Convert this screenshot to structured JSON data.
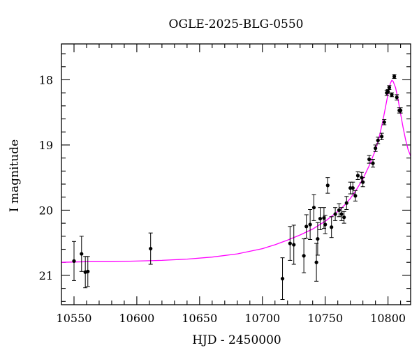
{
  "chart_data": {
    "type": "scatter",
    "title": "OGLE-2025-BLG-0550",
    "xlabel": "HJD - 2450000",
    "ylabel": "I magnitude",
    "xlim": [
      10540,
      10818
    ],
    "ylim": [
      21.45,
      17.45
    ],
    "y_inverted": true,
    "grid": false,
    "x_ticks": [
      10550,
      10600,
      10650,
      10700,
      10750,
      10800
    ],
    "y_ticks": [
      18,
      19,
      20,
      21
    ],
    "x_tick_labels": [
      "10550",
      "10600",
      "10650",
      "10700",
      "10750",
      "10800"
    ],
    "y_tick_labels": [
      "18",
      "19",
      "20",
      "21"
    ],
    "x_minor_step": 10,
    "y_minor_step": 0.2,
    "colors": {
      "points": "#000000",
      "model": "#ff00ff",
      "frame": "#000000"
    },
    "series": [
      {
        "kind": "points",
        "x": [
          10550,
          10556,
          10559,
          10561,
          10611,
          10716,
          10722,
          10725,
          10733,
          10735,
          10738,
          10741,
          10743,
          10744,
          10746,
          10749,
          10750,
          10752,
          10755,
          10758,
          10761,
          10763,
          10765,
          10767,
          10770,
          10772,
          10774,
          10776,
          10779,
          10780,
          10785,
          10788,
          10790,
          10792,
          10795,
          10797,
          10799,
          10800,
          10801,
          10803,
          10805,
          10807,
          10809,
          10810
        ],
        "y": [
          20.78,
          20.67,
          20.95,
          20.94,
          20.59,
          21.05,
          20.51,
          20.53,
          20.7,
          20.25,
          20.22,
          19.96,
          20.8,
          20.44,
          20.13,
          20.12,
          20.22,
          19.62,
          20.26,
          20.06,
          20.0,
          20.06,
          20.11,
          19.89,
          19.66,
          19.66,
          19.78,
          19.47,
          19.5,
          19.57,
          19.22,
          19.28,
          19.05,
          18.93,
          18.87,
          18.65,
          18.2,
          18.18,
          18.12,
          18.23,
          17.95,
          18.27,
          18.47,
          18.47
        ],
        "yerr": [
          0.3,
          0.27,
          0.24,
          0.23,
          0.24,
          0.32,
          0.26,
          0.3,
          0.26,
          0.18,
          0.23,
          0.2,
          0.29,
          0.25,
          0.17,
          0.16,
          0.14,
          0.12,
          0.16,
          0.1,
          0.1,
          0.1,
          0.09,
          0.1,
          0.09,
          0.09,
          0.08,
          0.06,
          0.08,
          0.07,
          0.06,
          0.06,
          0.05,
          0.05,
          0.05,
          0.04,
          0.04,
          0.03,
          0.03,
          0.03,
          0.03,
          0.04,
          0.04,
          0.04
        ]
      },
      {
        "kind": "model",
        "x": [
          10540,
          10560,
          10580,
          10600,
          10620,
          10640,
          10660,
          10680,
          10700,
          10710,
          10720,
          10730,
          10740,
          10750,
          10760,
          10765,
          10770,
          10775,
          10780,
          10785,
          10790,
          10793,
          10796,
          10798,
          10800,
          10801,
          10802,
          10803,
          10804,
          10806,
          10808,
          10810,
          10812,
          10814,
          10816,
          10818
        ],
        "y": [
          20.8,
          20.79,
          20.79,
          20.78,
          20.77,
          20.75,
          20.72,
          20.67,
          20.59,
          20.53,
          20.46,
          20.38,
          20.29,
          20.17,
          20.02,
          19.93,
          19.82,
          19.68,
          19.52,
          19.32,
          19.08,
          18.88,
          18.62,
          18.42,
          18.22,
          18.12,
          18.05,
          18.01,
          18.02,
          18.12,
          18.3,
          18.52,
          18.73,
          18.92,
          19.07,
          19.17
        ]
      }
    ]
  }
}
